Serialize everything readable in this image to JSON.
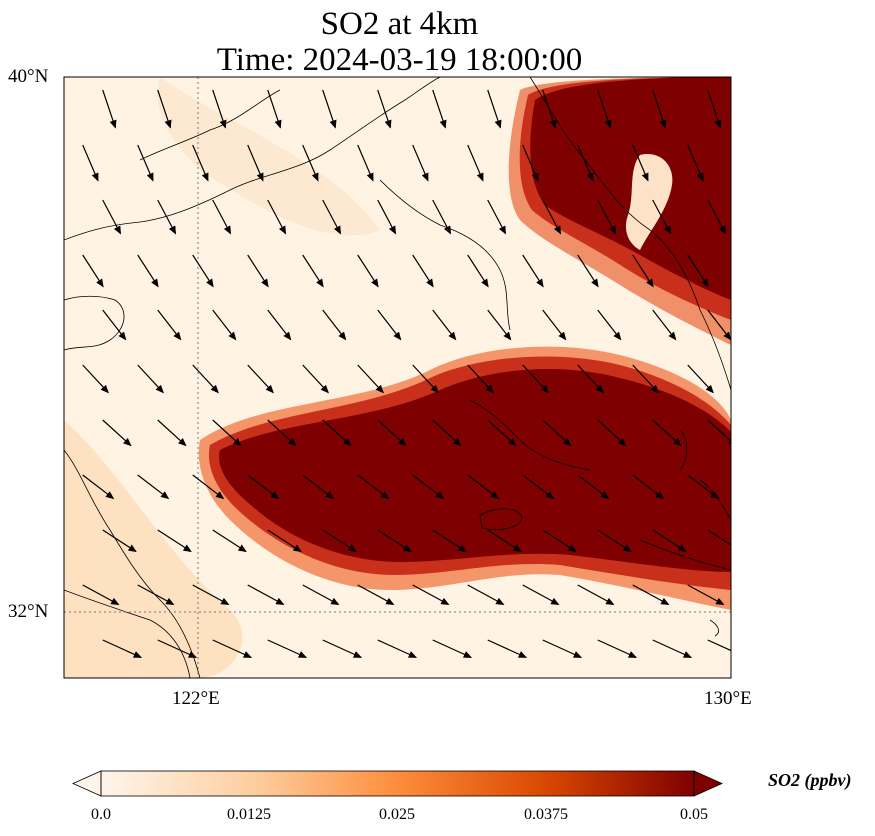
{
  "title_line1": "SO2 at 4km",
  "title_line2": "Time: 2024-03-19 18:00:00",
  "lat_labels": [
    "40°N",
    "32°N"
  ],
  "lon_labels": [
    "122°E",
    "130°E"
  ],
  "colorbar": {
    "label": "SO2 (ppbv)",
    "ticks": [
      "0.0",
      "0.0125",
      "0.025",
      "0.0375",
      "0.05"
    ],
    "colors": [
      "#fff5eb",
      "#fdd0a2",
      "#fd8d3c",
      "#d94801",
      "#7f0000"
    ]
  },
  "wind_direction": "northwest to southeast"
}
